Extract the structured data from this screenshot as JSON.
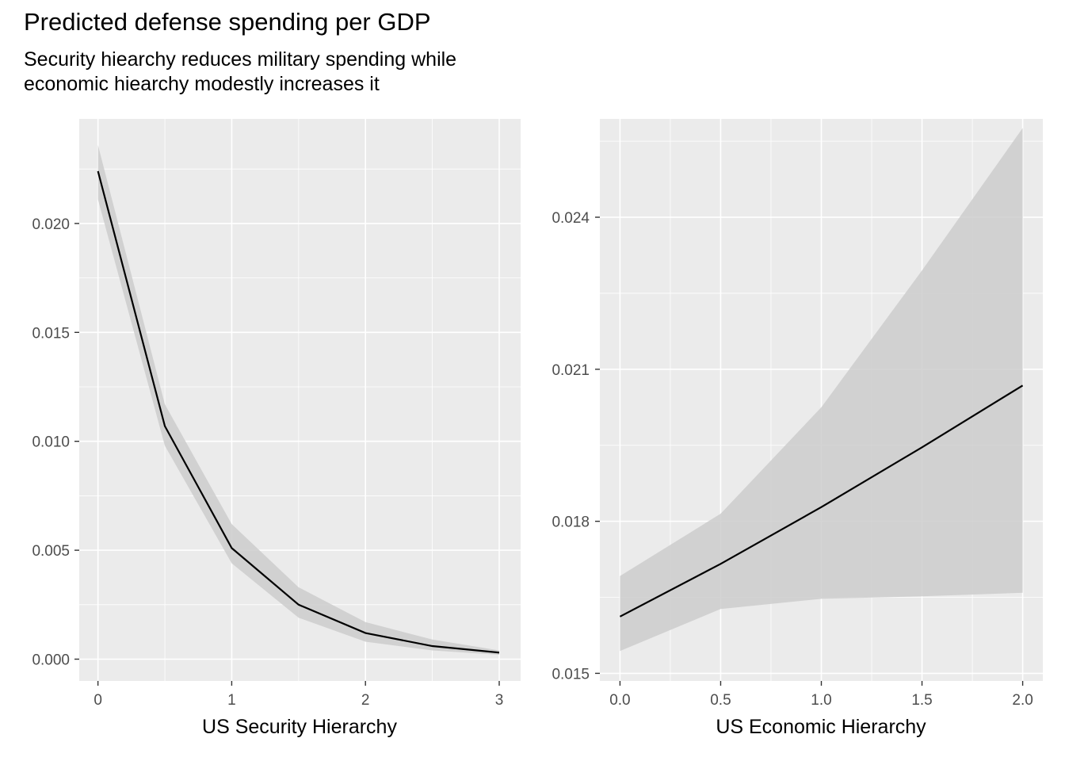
{
  "title": "Predicted defense spending per GDP",
  "subtitle_lines": [
    "Security hiearchy reduces military spending while",
    "economic hiearchy modestly increases it"
  ],
  "colors": {
    "panel_bg": "#ebebeb",
    "grid": "#ffffff",
    "ribbon": "#cccccc",
    "line": "#000000",
    "tick_text": "#4d4d4d"
  },
  "chart_data": [
    {
      "type": "line",
      "subtype": "line-with-confidence-ribbon",
      "xlabel": "US Security Hierarchy",
      "ylabel": "",
      "xlim": [
        -0.14,
        3.16
      ],
      "ylim": [
        -0.001,
        0.0248
      ],
      "x_ticks": [
        0,
        1,
        2,
        3
      ],
      "x_tick_labels": [
        "0",
        "1",
        "2",
        "3"
      ],
      "y_ticks": [
        0.0,
        0.005,
        0.01,
        0.015,
        0.02
      ],
      "y_tick_labels": [
        "0.000",
        "0.005",
        "0.010",
        "0.015",
        "0.020"
      ],
      "grid": true,
      "x": [
        0,
        0.5,
        1,
        1.5,
        2,
        2.5,
        3
      ],
      "series": [
        {
          "values": [
            0.0224,
            0.0107,
            0.0051,
            0.0025,
            0.0012,
            0.0006,
            0.0003
          ],
          "lower": [
            0.0211,
            0.0098,
            0.0044,
            0.0019,
            0.0008,
            0.0004,
            0.0002
          ],
          "upper": [
            0.0236,
            0.0117,
            0.0062,
            0.0033,
            0.0017,
            0.0009,
            0.0004
          ]
        }
      ]
    },
    {
      "type": "line",
      "subtype": "line-with-confidence-ribbon",
      "xlabel": "US Economic Hierarchy",
      "ylabel": "",
      "xlim": [
        -0.1,
        2.1
      ],
      "ylim": [
        0.01485,
        0.02594
      ],
      "x_ticks": [
        0.0,
        0.5,
        1.0,
        1.5,
        2.0
      ],
      "x_tick_labels": [
        "0.0",
        "0.5",
        "1.0",
        "1.5",
        "2.0"
      ],
      "y_ticks": [
        0.015,
        0.018,
        0.021,
        0.024
      ],
      "y_tick_labels": [
        "0.015",
        "0.018",
        "0.021",
        "0.024"
      ],
      "grid": true,
      "x": [
        0,
        0.5,
        1.0,
        1.5,
        2.0
      ],
      "series": [
        {
          "values": [
            0.01612,
            0.01716,
            0.01828,
            0.01946,
            0.02068
          ],
          "lower": [
            0.01544,
            0.01627,
            0.01647,
            0.01652,
            0.01659
          ],
          "upper": [
            0.01692,
            0.01815,
            0.02025,
            0.02295,
            0.02576
          ]
        }
      ]
    }
  ]
}
